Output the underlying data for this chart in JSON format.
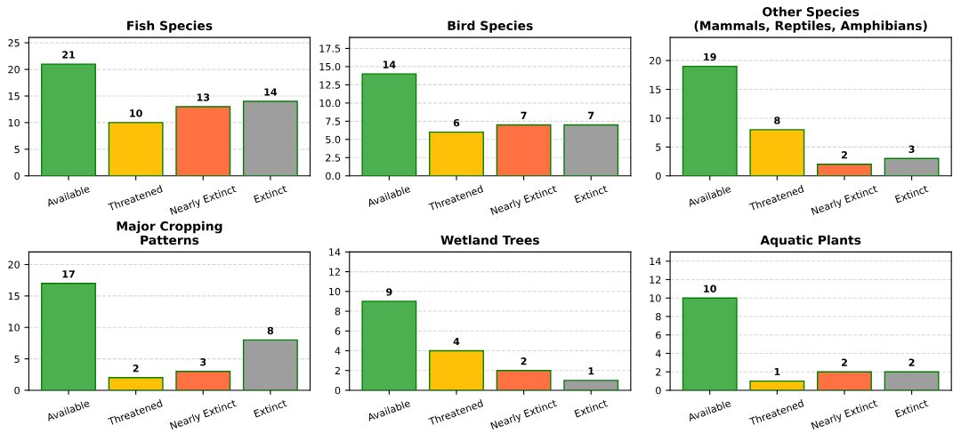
{
  "chart_data": [
    {
      "type": "bar",
      "title": "Fish Species",
      "categories": [
        "Available",
        "Threatened",
        "Nearly Extinct",
        "Extinct"
      ],
      "values": [
        21,
        10,
        13,
        14
      ],
      "colors": [
        "#4caf50",
        "#ffc107",
        "#ff7043",
        "#9e9e9e"
      ],
      "ylim": [
        0,
        26
      ],
      "yticks": [
        0,
        5,
        10,
        15,
        20,
        25
      ],
      "grid": "y",
      "data_labels": true
    },
    {
      "type": "bar",
      "title": "Bird Species",
      "categories": [
        "Available",
        "Threatened",
        "Nearly Extinct",
        "Extinct"
      ],
      "values": [
        14,
        6,
        7,
        7
      ],
      "colors": [
        "#4caf50",
        "#ffc107",
        "#ff7043",
        "#9e9e9e"
      ],
      "ylim": [
        0,
        19
      ],
      "yticks": [
        {
          "value": 0,
          "label": "0.0"
        },
        {
          "value": 2.5,
          "label": "2.5"
        },
        {
          "value": 5,
          "label": "5.0"
        },
        {
          "value": 7.5,
          "label": "7.5"
        },
        {
          "value": 10,
          "label": "10.0"
        },
        {
          "value": 12.5,
          "label": "12.5"
        },
        {
          "value": 15,
          "label": "15.0"
        },
        {
          "value": 17.5,
          "label": "17.5"
        }
      ],
      "grid": "y",
      "data_labels": true
    },
    {
      "type": "bar",
      "title": "Other Species\n(Mammals, Reptiles, Amphibians)",
      "categories": [
        "Available",
        "Threatened",
        "Nearly Extinct",
        "Extinct"
      ],
      "values": [
        19,
        8,
        2,
        3
      ],
      "colors": [
        "#4caf50",
        "#ffc107",
        "#ff7043",
        "#9e9e9e"
      ],
      "ylim": [
        0,
        24
      ],
      "yticks": [
        0,
        5,
        10,
        15,
        20
      ],
      "grid": "y",
      "data_labels": true
    },
    {
      "type": "bar",
      "title": "Major Cropping\nPatterns",
      "categories": [
        "Available",
        "Threatened",
        "Nearly Extinct",
        "Extinct"
      ],
      "values": [
        17,
        2,
        3,
        8
      ],
      "colors": [
        "#4caf50",
        "#ffc107",
        "#ff7043",
        "#9e9e9e"
      ],
      "ylim": [
        0,
        22
      ],
      "yticks": [
        0,
        5,
        10,
        15,
        20
      ],
      "grid": "y",
      "data_labels": true
    },
    {
      "type": "bar",
      "title": "Wetland Trees",
      "categories": [
        "Available",
        "Threatened",
        "Nearly Extinct",
        "Extinct"
      ],
      "values": [
        9,
        4,
        2,
        1
      ],
      "colors": [
        "#4caf50",
        "#ffc107",
        "#ff7043",
        "#9e9e9e"
      ],
      "ylim": [
        0,
        14
      ],
      "yticks": [
        0,
        2,
        4,
        6,
        8,
        10,
        12,
        14
      ],
      "grid": "y",
      "data_labels": true
    },
    {
      "type": "bar",
      "title": "Aquatic Plants",
      "categories": [
        "Available",
        "Threatened",
        "Nearly Extinct",
        "Extinct"
      ],
      "values": [
        10,
        1,
        2,
        2
      ],
      "colors": [
        "#4caf50",
        "#ffc107",
        "#ff7043",
        "#9e9e9e"
      ],
      "ylim": [
        0,
        15
      ],
      "yticks": [
        0,
        2,
        4,
        6,
        8,
        10,
        12,
        14
      ],
      "grid": "y",
      "data_labels": true
    }
  ]
}
